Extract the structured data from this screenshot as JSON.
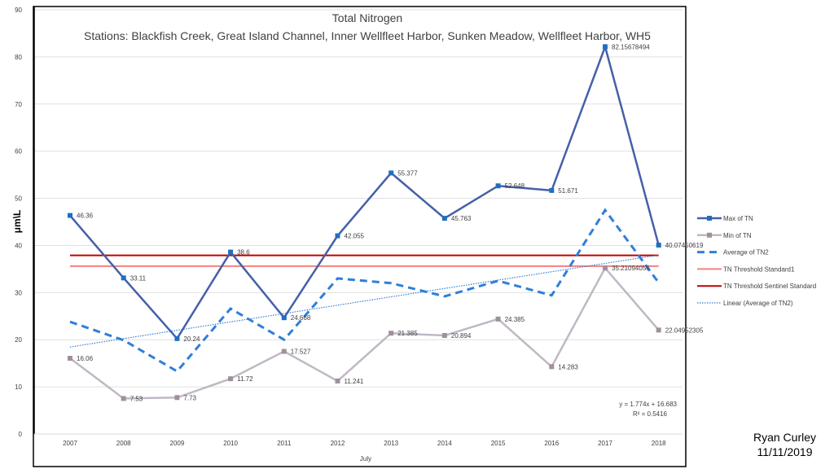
{
  "chart_data": {
    "type": "line",
    "title": "Total Nitrogen",
    "subtitle": "Stations: Blackfish Creek, Great Island Channel, Inner Wellfleet Harbor, Sunken Meadow, Wellfleet Harbor, WH5",
    "xlabel": "July",
    "ylabel": "μm\\L",
    "ylim": [
      0,
      90
    ],
    "yticks": [
      0,
      10,
      20,
      30,
      40,
      50,
      60,
      70,
      80,
      90
    ],
    "grid": true,
    "legend_placement": "right",
    "categories": [
      "2007",
      "2008",
      "2009",
      "2010",
      "2011",
      "2012",
      "2013",
      "2014",
      "2015",
      "2016",
      "2017",
      "2018"
    ],
    "series": [
      {
        "name": "Max of TN",
        "color": "#4560a8",
        "style": "solid-marker",
        "values": [
          46.36,
          33.11,
          20.24,
          38.6,
          24.668,
          42.055,
          55.377,
          45.763,
          52.648,
          51.671,
          82.15678494,
          40.07450619
        ],
        "labels": [
          "46.36",
          "33.11",
          "20.24",
          "38.6",
          "24.668",
          "42.055",
          "55.377",
          "45.763",
          "52.648",
          "51.671",
          "82.15678494",
          "40.07450619"
        ]
      },
      {
        "name": "Min of TN",
        "color": "#c0b8c4",
        "marker_color": "#a0909c",
        "style": "solid-marker",
        "values": [
          16.06,
          7.53,
          7.73,
          11.72,
          17.527,
          11.241,
          21.385,
          20.894,
          24.385,
          14.283,
          35.21094056,
          22.04952305
        ],
        "labels": [
          "16.06",
          "7.53",
          "7.73",
          "11.72",
          "17.527",
          "11.241",
          "21.385",
          "20.894",
          "24.385",
          "14.283",
          "35.21094056",
          "22.04952305"
        ]
      },
      {
        "name": "Average of TN2",
        "color": "#2f7fd8",
        "style": "dashed",
        "values": [
          23.8,
          19.9,
          13.3,
          26.6,
          20.0,
          33.0,
          32.0,
          29.2,
          32.5,
          29.4,
          47.5,
          32.1
        ]
      },
      {
        "name": "TN Threshold Standard1",
        "color": "#f48080",
        "style": "solid",
        "values": [
          35.6,
          35.6,
          35.6,
          35.6,
          35.6,
          35.6,
          35.6,
          35.6,
          35.6,
          35.6,
          35.6,
          35.6
        ]
      },
      {
        "name": "TN Threshold Sentinel Standard",
        "color": "#c00000",
        "style": "solid",
        "values": [
          37.9,
          37.9,
          37.9,
          37.9,
          37.9,
          37.9,
          37.9,
          37.9,
          37.9,
          37.9,
          37.9,
          37.9
        ]
      },
      {
        "name": "Linear (Average of TN2)",
        "color": "#2f7fd8",
        "style": "dotted",
        "slope": 1.774,
        "intercept": 16.683
      }
    ],
    "trend_equation": "y = 1.774x + 16.683",
    "trend_r2": "R² = 0.5416"
  },
  "signature": {
    "name": "Ryan Curley",
    "date": "11/11/2019"
  }
}
